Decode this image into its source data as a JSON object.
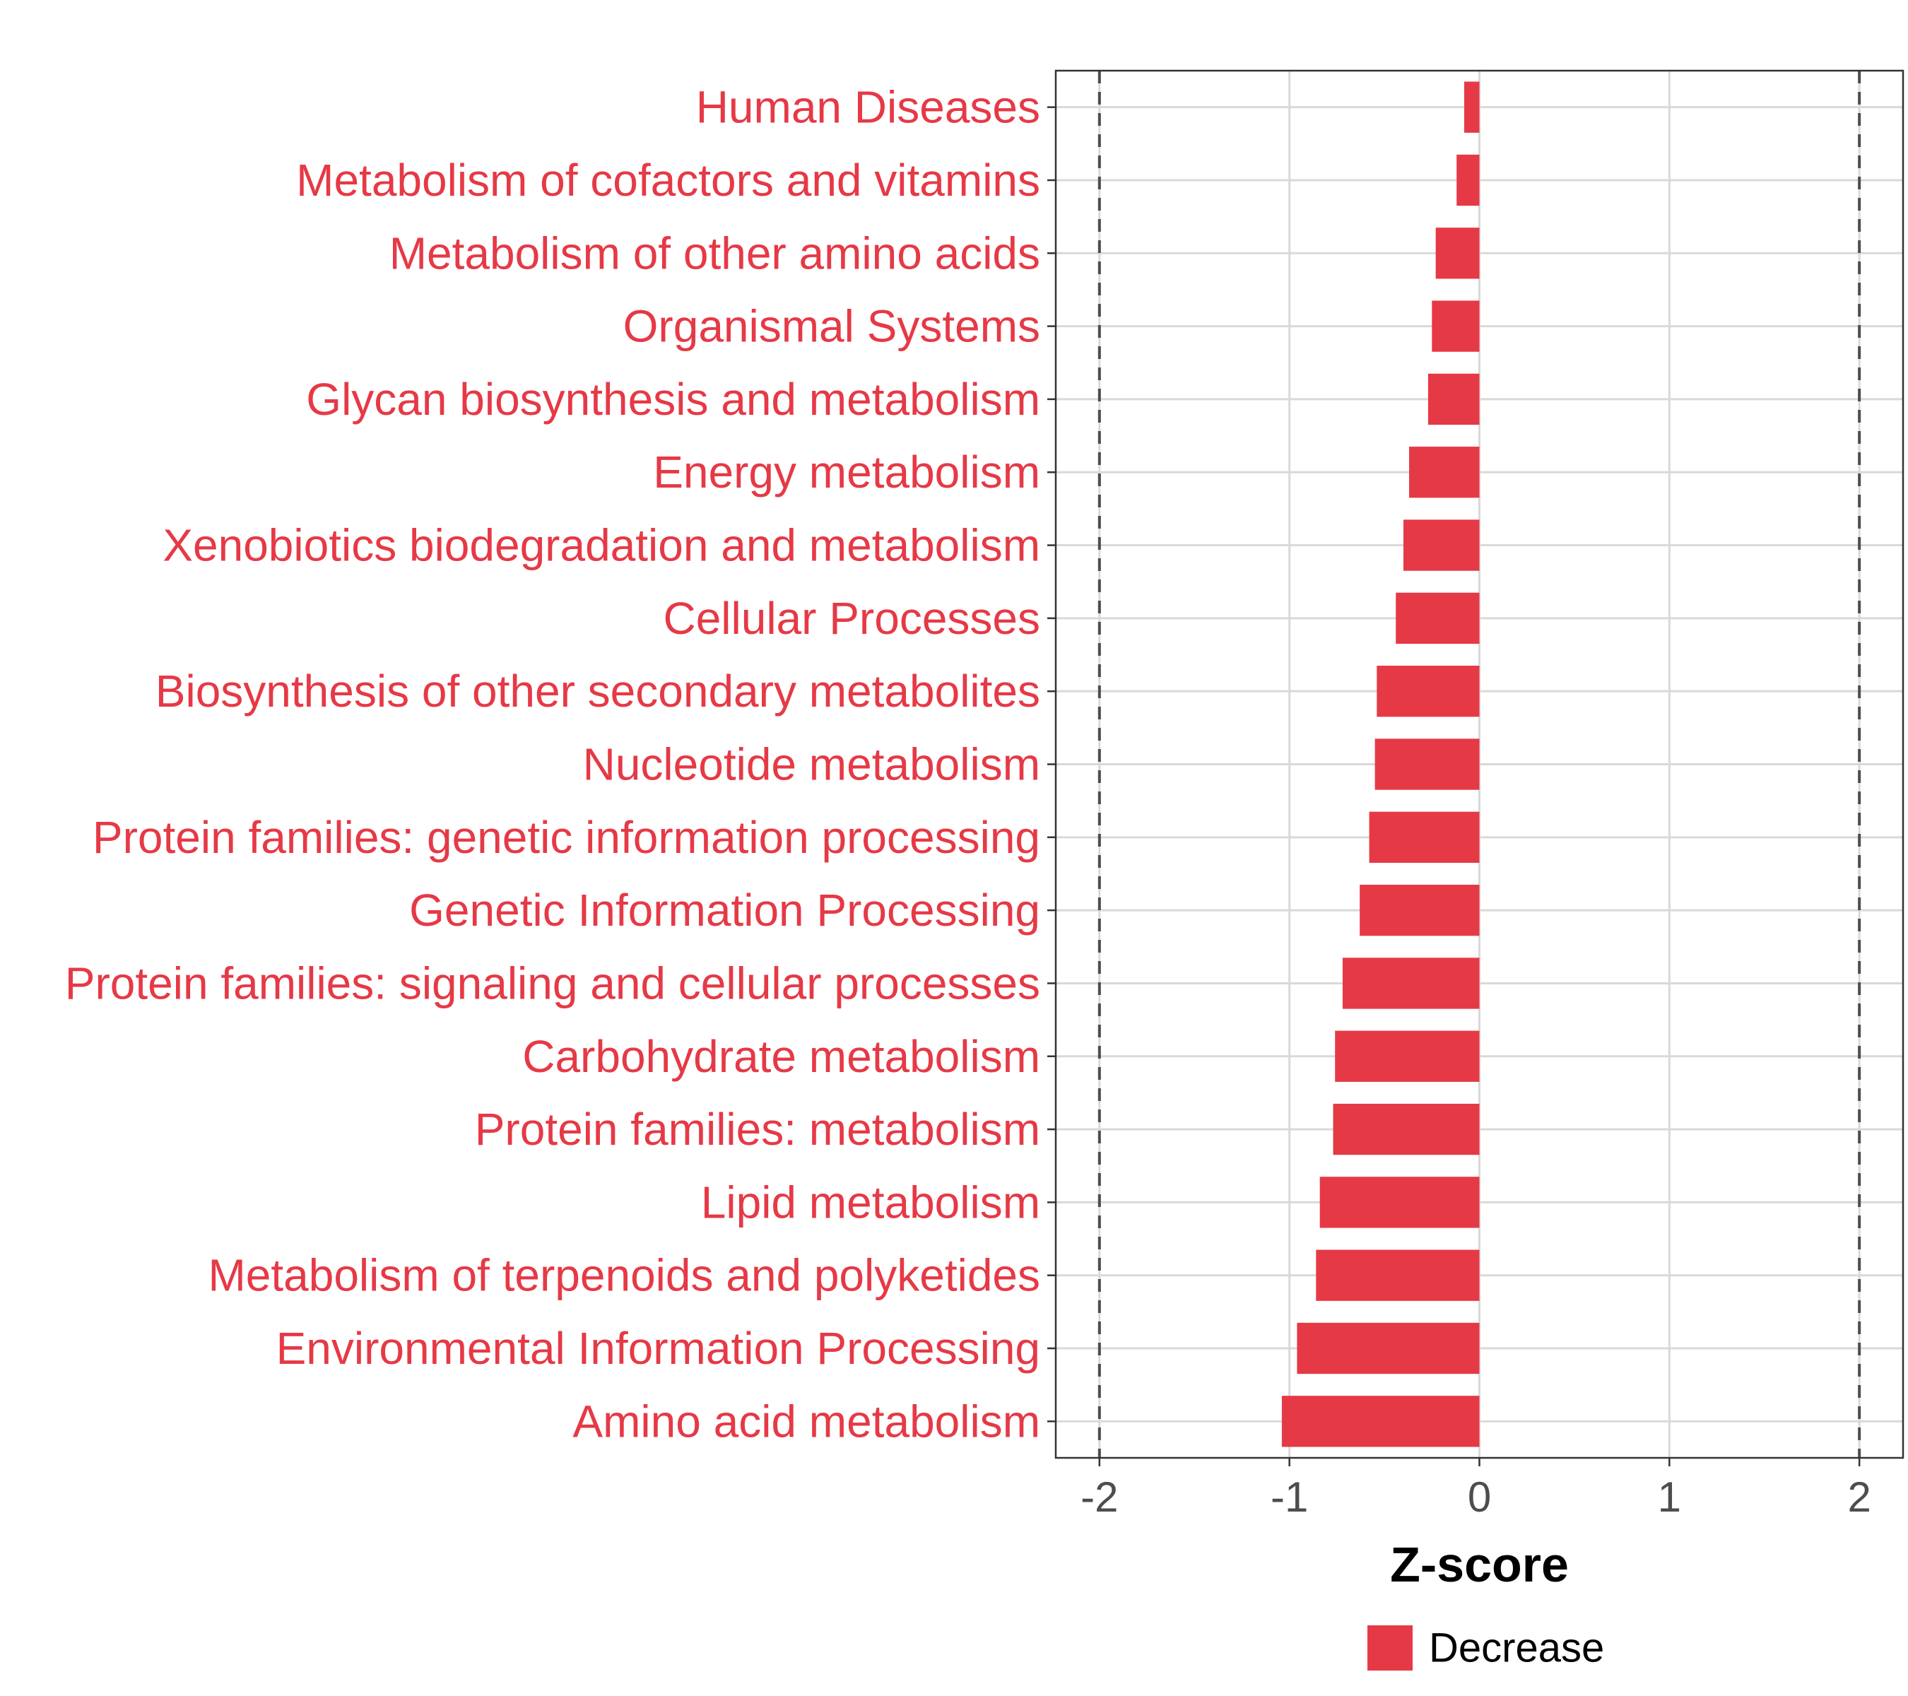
{
  "chart_data": {
    "type": "bar",
    "orientation": "horizontal",
    "categories": [
      "Human Diseases",
      "Metabolism of cofactors and vitamins",
      "Metabolism of other amino acids",
      "Organismal Systems",
      "Glycan biosynthesis and metabolism",
      "Energy metabolism",
      "Xenobiotics biodegradation and metabolism",
      "Cellular Processes",
      "Biosynthesis of other secondary metabolites",
      "Nucleotide metabolism",
      "Protein families: genetic information processing",
      "Genetic Information Processing",
      "Protein families: signaling and cellular processes",
      "Carbohydrate metabolism",
      "Protein families: metabolism",
      "Lipid metabolism",
      "Metabolism of terpenoids and polyketides",
      "Environmental Information Processing",
      "Amino acid metabolism"
    ],
    "values": [
      -0.08,
      -0.12,
      -0.23,
      -0.25,
      -0.27,
      -0.37,
      -0.4,
      -0.44,
      -0.54,
      -0.55,
      -0.58,
      -0.63,
      -0.72,
      -0.76,
      -0.77,
      -0.84,
      -0.86,
      -0.96,
      -1.04
    ],
    "xlabel": "Z-score",
    "ylabel": "",
    "xlim": [
      -2.23,
      2.23
    ],
    "xticks": [
      "-2",
      "-1",
      "0",
      "1",
      "2"
    ],
    "reference_lines": [
      -2,
      2
    ],
    "grid": true,
    "legend": {
      "position": "bottom",
      "entries": [
        {
          "label": "Decrease",
          "color": "#e63946"
        }
      ]
    },
    "colors": {
      "bar": "#e63946",
      "label": "#e63946",
      "grid": "#d9d9d9",
      "refline": "#4d4d4d"
    }
  }
}
